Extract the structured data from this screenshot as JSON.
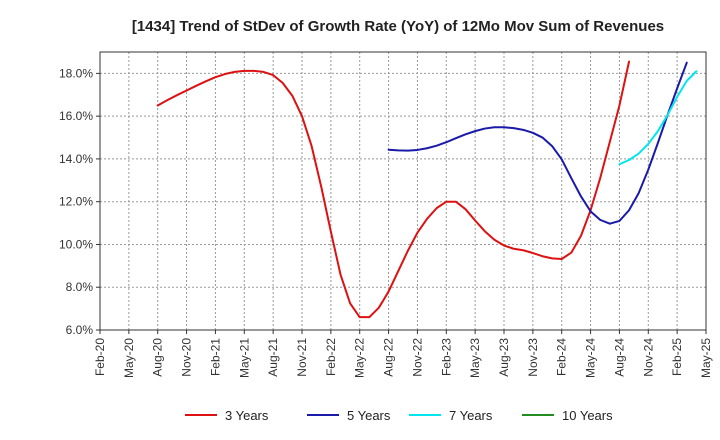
{
  "chart_data": {
    "type": "line",
    "title": "[1434]  Trend of StDev of Growth Rate (YoY) of 12Mo Mov Sum of Revenues",
    "xlabel": "",
    "ylabel": "",
    "ylim": [
      6.0,
      19.0
    ],
    "yticks": [
      6.0,
      8.0,
      10.0,
      12.0,
      14.0,
      16.0,
      18.0
    ],
    "ytick_labels": [
      "6.0%",
      "8.0%",
      "10.0%",
      "12.0%",
      "14.0%",
      "16.0%",
      "18.0%"
    ],
    "x_tick_labels": [
      "Feb-20",
      "May-20",
      "Aug-20",
      "Nov-20",
      "Feb-21",
      "May-21",
      "Aug-21",
      "Nov-21",
      "Feb-22",
      "May-22",
      "Aug-22",
      "Nov-22",
      "Feb-23",
      "May-23",
      "Aug-23",
      "Nov-23",
      "Feb-24",
      "May-24",
      "Aug-24",
      "Nov-24",
      "Feb-25",
      "May-25"
    ],
    "grid": true,
    "legend_position": "bottom",
    "series": [
      {
        "name": "3 Years",
        "color": "#dd1111",
        "start_index": 6,
        "values": [
          16.5,
          16.75,
          16.98,
          17.2,
          17.42,
          17.63,
          17.82,
          17.97,
          18.07,
          18.12,
          18.12,
          18.07,
          17.92,
          17.55,
          16.95,
          16.0,
          14.6,
          12.7,
          10.6,
          8.6,
          7.25,
          6.6,
          6.6,
          7.05,
          7.8,
          8.75,
          9.7,
          10.55,
          11.2,
          11.7,
          12.0,
          12.0,
          11.65,
          11.12,
          10.62,
          10.22,
          9.95,
          9.8,
          9.73,
          9.6,
          9.45,
          9.35,
          9.32,
          9.62,
          10.4,
          11.6,
          13.1,
          14.8,
          16.5,
          18.55
        ]
      },
      {
        "name": "5 Years",
        "color": "#1a1aaa",
        "start_index": 30,
        "values": [
          14.43,
          14.4,
          14.39,
          14.42,
          14.5,
          14.62,
          14.78,
          14.97,
          15.15,
          15.3,
          15.42,
          15.48,
          15.48,
          15.44,
          15.36,
          15.22,
          15.0,
          14.6,
          13.98,
          13.1,
          12.25,
          11.55,
          11.15,
          10.97,
          11.1,
          11.6,
          12.4,
          13.5,
          14.75,
          16.05,
          17.3,
          18.5
        ]
      },
      {
        "name": "7 Years",
        "color": "#00e5ee",
        "start_index": 54,
        "values": [
          13.75,
          13.95,
          14.25,
          14.7,
          15.3,
          16.05,
          16.9,
          17.65,
          18.1
        ]
      },
      {
        "name": "10 Years",
        "color": "#228b22",
        "start_index": 0,
        "values": []
      }
    ]
  }
}
